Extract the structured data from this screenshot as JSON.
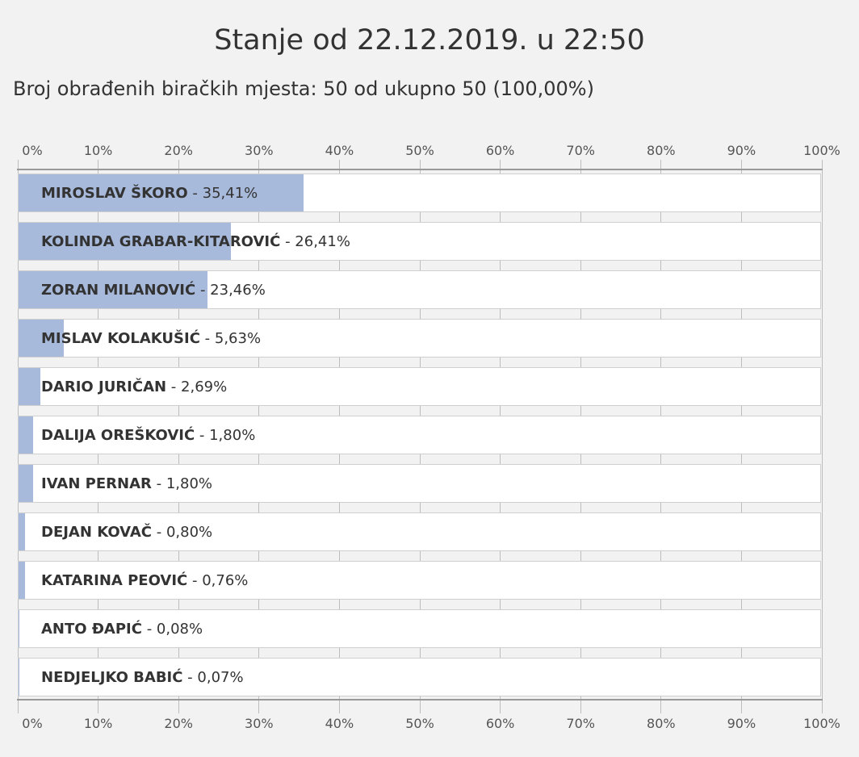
{
  "header": {
    "title": "Stanje od 22.12.2019. u 22:50",
    "subtitle": "Broj obrađenih biračkih mjesta: 50 od ukupno 50 (100,00%)"
  },
  "colors": {
    "bar_fill": "#a8badb",
    "bar_bg": "#ffffff",
    "background": "#f2f2f2"
  },
  "chart_data": {
    "type": "bar",
    "orientation": "horizontal",
    "xlim": [
      0,
      100
    ],
    "ticks": [
      "0%",
      "10%",
      "20%",
      "30%",
      "40%",
      "50%",
      "60%",
      "70%",
      "80%",
      "90%",
      "100%"
    ],
    "ticks_position": "top and bottom",
    "grid": true,
    "categories": [
      "MIROSLAV ŠKORO",
      "KOLINDA GRABAR-KITAROVIĆ",
      "ZORAN MILANOVIĆ",
      "MISLAV KOLAKUŠIĆ",
      "DARIO JURIČAN",
      "DALIJA OREŠKOVIĆ",
      "IVAN PERNAR",
      "DEJAN KOVAČ",
      "KATARINA PEOVIĆ",
      "ANTO ĐAPIĆ",
      "NEDJELJKO BABIĆ"
    ],
    "values": [
      35.41,
      26.41,
      23.46,
      5.63,
      2.69,
      1.8,
      1.8,
      0.8,
      0.76,
      0.08,
      0.07
    ],
    "value_labels": [
      "35,41%",
      "26,41%",
      "23,46%",
      "5,63%",
      "2,69%",
      "1,80%",
      "1,80%",
      "0,80%",
      "0,76%",
      "0,08%",
      "0,07%"
    ]
  }
}
